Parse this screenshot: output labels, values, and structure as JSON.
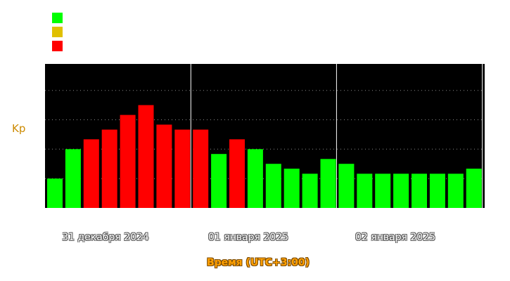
{
  "colors": {
    "low": "#00ff00",
    "mid": "#e0c000",
    "high": "#ff0000",
    "plot_bg": "#000000",
    "label": "#cc8a00",
    "xlabel": "#ffa000"
  },
  "chart_data": {
    "type": "bar",
    "ylabel": "Kp",
    "xlabel": "Время (UTC+3:00)",
    "ylim": [
      0,
      9
    ],
    "day_labels": [
      "31 декабря 2024",
      "01 января 2025",
      "02 января 2025"
    ],
    "values": [
      2,
      4,
      4.67,
      5.33,
      6.33,
      7,
      5.67,
      5.33,
      5.33,
      3.67,
      4.67,
      4,
      3,
      2.67,
      2.33,
      3.33,
      3,
      2.33,
      2.33,
      2.33,
      2.33,
      2.33,
      2.33,
      2.67
    ],
    "level": [
      "low",
      "low",
      "high",
      "high",
      "high",
      "high",
      "high",
      "high",
      "high",
      "low",
      "high",
      "low",
      "low",
      "low",
      "low",
      "low",
      "low",
      "low",
      "low",
      "low",
      "low",
      "low",
      "low",
      "low"
    ],
    "legend": [
      "low",
      "mid",
      "high"
    ],
    "grid": true
  }
}
